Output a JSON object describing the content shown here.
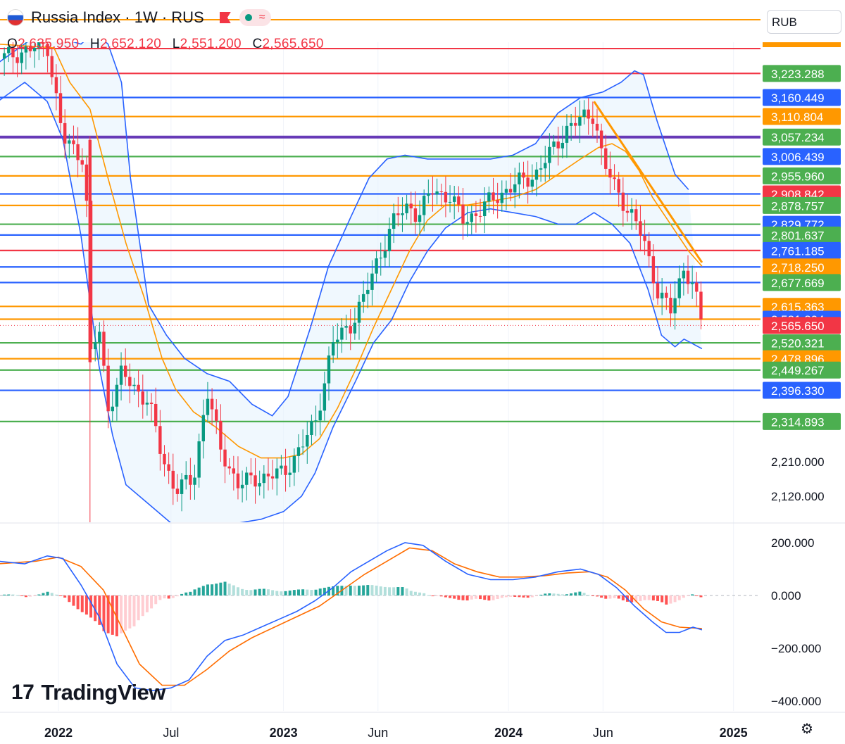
{
  "header": {
    "title": "Russia Index · 1W · RUS",
    "pill_symbol": "≈",
    "ohlc": [
      {
        "key": "O",
        "value": "2,635.950"
      },
      {
        "key": "H",
        "value": "2,652.120"
      },
      {
        "key": "L",
        "value": "2,551.200"
      },
      {
        "key": "C",
        "value": "2,565.650"
      }
    ]
  },
  "currency": "RUB",
  "logo_text": "TradingView",
  "colors": {
    "up": "#089981",
    "down": "#f23645",
    "orange": "#ff9800",
    "blue": "#2962ff",
    "green": "#4caf50",
    "purple": "#673ab7",
    "red": "#f23645"
  },
  "chart_data": {
    "type": "candlestick",
    "main_ylim": [
      2070,
      3300
    ],
    "x_labels": [
      {
        "label": "2022",
        "x": 2022.0,
        "bold": true
      },
      {
        "label": "Jul",
        "x": 2022.5,
        "bold": false
      },
      {
        "label": "2023",
        "x": 2023.0,
        "bold": true
      },
      {
        "label": "Jun",
        "x": 2023.42,
        "bold": false
      },
      {
        "label": "2024",
        "x": 2024.0,
        "bold": true
      },
      {
        "label": "Jun",
        "x": 2024.42,
        "bold": false
      },
      {
        "label": "2025",
        "x": 2025.0,
        "bold": true
      }
    ],
    "price_axis_ticks": [
      "2,210.000",
      "2,120.000"
    ],
    "hidden_top_level": "3,288.604",
    "levels": [
      {
        "value": 3223.288,
        "label": "3,223.288",
        "color": "#4caf50",
        "line": "#f23645"
      },
      {
        "value": 3160.449,
        "label": "3,160.449",
        "color": "#2962ff",
        "line": "#2962ff"
      },
      {
        "value": 3110.804,
        "label": "3,110.804",
        "color": "#ff9800",
        "line": "#ff9800"
      },
      {
        "value": 3057.234,
        "label": "3,057.234",
        "color": "#4caf50",
        "line": "#673ab7"
      },
      {
        "value": 3006.439,
        "label": "3,006.439",
        "color": "#2962ff",
        "line": "#4caf50"
      },
      {
        "value": 2955.96,
        "label": "2,955.960",
        "color": "#4caf50",
        "line": "#ff9800"
      },
      {
        "value": 2908.842,
        "label": "2,908.842",
        "color": "#f23645",
        "line": "#2962ff"
      },
      {
        "value": 2878.757,
        "label": "2,878.757",
        "color": "#4caf50",
        "line": "#ff9800"
      },
      {
        "value": 2829.772,
        "label": "2,829.772",
        "color": "#2962ff",
        "line": "#4caf50"
      },
      {
        "value": 2801.637,
        "label": "2,801.637",
        "color": "#4caf50",
        "line": "#2962ff"
      },
      {
        "value": 2761.185,
        "label": "2,761.185",
        "color": "#2962ff",
        "line": "#f23645"
      },
      {
        "value": 2718.25,
        "label": "2,718.250",
        "color": "#ff9800",
        "line": "#2962ff"
      },
      {
        "value": 2677.669,
        "label": "2,677.669",
        "color": "#4caf50",
        "line": "#2962ff"
      },
      {
        "value": 2615.363,
        "label": "2,615.363",
        "color": "#ff9800",
        "line": "#ff9800"
      },
      {
        "value": 2581.894,
        "label": "2,581.894",
        "color": "#2962ff",
        "line": "#ff9800"
      },
      {
        "value": 2565.65,
        "label": "2,565.650",
        "color": "#f23645",
        "line": "dotted"
      },
      {
        "value": 2520.321,
        "label": "2,520.321",
        "color": "#4caf50",
        "line": "#4caf50"
      },
      {
        "value": 2478.896,
        "label": "2,478.896",
        "color": "#ff9800",
        "line": "#ff9800"
      },
      {
        "value": 2449.267,
        "label": "2,449.267",
        "color": "#4caf50",
        "line": "#4caf50"
      },
      {
        "value": 2396.33,
        "label": "2,396.330",
        "color": "#2962ff",
        "line": "#2962ff"
      },
      {
        "value": 2314.893,
        "label": "2,314.893",
        "color": "#4caf50",
        "line": "#4caf50"
      }
    ],
    "price_path": [
      [
        2021.73,
        3260
      ],
      [
        2021.95,
        3300
      ],
      [
        2022.02,
        3050
      ],
      [
        2022.12,
        3000
      ],
      [
        2022.14,
        2480
      ],
      [
        2022.18,
        2560
      ],
      [
        2022.22,
        2350
      ],
      [
        2022.28,
        2440
      ],
      [
        2022.34,
        2400
      ],
      [
        2022.4,
        2370
      ],
      [
        2022.46,
        2220
      ],
      [
        2022.52,
        2140
      ],
      [
        2022.6,
        2160
      ],
      [
        2022.66,
        2400
      ],
      [
        2022.72,
        2240
      ],
      [
        2022.8,
        2150
      ],
      [
        2022.9,
        2170
      ],
      [
        2023.0,
        2180
      ],
      [
        2023.08,
        2250
      ],
      [
        2023.14,
        2310
      ],
      [
        2023.22,
        2520
      ],
      [
        2023.3,
        2570
      ],
      [
        2023.36,
        2640
      ],
      [
        2023.42,
        2740
      ],
      [
        2023.5,
        2850
      ],
      [
        2023.56,
        2880
      ],
      [
        2023.6,
        2850
      ],
      [
        2023.66,
        2920
      ],
      [
        2023.74,
        2900
      ],
      [
        2023.8,
        2840
      ],
      [
        2023.86,
        2860
      ],
      [
        2023.94,
        2900
      ],
      [
        2024.02,
        2930
      ],
      [
        2024.12,
        2960
      ],
      [
        2024.18,
        3010
      ],
      [
        2024.26,
        3080
      ],
      [
        2024.34,
        3110
      ],
      [
        2024.38,
        3120
      ],
      [
        2024.42,
        2990
      ],
      [
        2024.48,
        2920
      ],
      [
        2024.54,
        2860
      ],
      [
        2024.6,
        2790
      ],
      [
        2024.66,
        2660
      ],
      [
        2024.72,
        2600
      ],
      [
        2024.78,
        2720
      ],
      [
        2024.82,
        2670
      ],
      [
        2024.86,
        2566
      ]
    ],
    "bb_upper": [
      [
        2021.73,
        3250
      ],
      [
        2021.92,
        3330
      ],
      [
        2022.1,
        3300
      ],
      [
        2022.16,
        3330
      ],
      [
        2022.22,
        3300
      ],
      [
        2022.28,
        3200
      ],
      [
        2022.32,
        2950
      ],
      [
        2022.4,
        2620
      ],
      [
        2022.48,
        2540
      ],
      [
        2022.56,
        2480
      ],
      [
        2022.66,
        2440
      ],
      [
        2022.76,
        2420
      ],
      [
        2022.86,
        2360
      ],
      [
        2022.95,
        2330
      ],
      [
        2023.02,
        2380
      ],
      [
        2023.12,
        2560
      ],
      [
        2023.2,
        2720
      ],
      [
        2023.3,
        2850
      ],
      [
        2023.38,
        2950
      ],
      [
        2023.46,
        3000
      ],
      [
        2023.54,
        3010
      ],
      [
        2023.64,
        3000
      ],
      [
        2023.72,
        3000
      ],
      [
        2023.82,
        3000
      ],
      [
        2023.92,
        3000
      ],
      [
        2024.02,
        3010
      ],
      [
        2024.12,
        3040
      ],
      [
        2024.22,
        3120
      ],
      [
        2024.32,
        3160
      ],
      [
        2024.42,
        3175
      ],
      [
        2024.5,
        3200
      ],
      [
        2024.56,
        3230
      ],
      [
        2024.6,
        3220
      ],
      [
        2024.66,
        3100
      ],
      [
        2024.74,
        2960
      ],
      [
        2024.8,
        2920
      ]
    ],
    "bb_lower": [
      [
        2021.73,
        3150
      ],
      [
        2021.85,
        3200
      ],
      [
        2021.95,
        3150
      ],
      [
        2022.02,
        3050
      ],
      [
        2022.1,
        2800
      ],
      [
        2022.18,
        2460
      ],
      [
        2022.24,
        2280
      ],
      [
        2022.3,
        2150
      ],
      [
        2022.4,
        2100
      ],
      [
        2022.5,
        2050
      ],
      [
        2022.6,
        2050
      ],
      [
        2022.7,
        2050
      ],
      [
        2022.8,
        2050
      ],
      [
        2022.9,
        2060
      ],
      [
        2023.0,
        2080
      ],
      [
        2023.08,
        2120
      ],
      [
        2023.14,
        2180
      ],
      [
        2023.22,
        2300
      ],
      [
        2023.32,
        2420
      ],
      [
        2023.4,
        2520
      ],
      [
        2023.48,
        2580
      ],
      [
        2023.56,
        2680
      ],
      [
        2023.64,
        2760
      ],
      [
        2023.72,
        2820
      ],
      [
        2023.82,
        2860
      ],
      [
        2023.92,
        2870
      ],
      [
        2024.02,
        2860
      ],
      [
        2024.12,
        2850
      ],
      [
        2024.22,
        2830
      ],
      [
        2024.3,
        2830
      ],
      [
        2024.38,
        2860
      ],
      [
        2024.46,
        2830
      ],
      [
        2024.54,
        2780
      ],
      [
        2024.62,
        2660
      ],
      [
        2024.68,
        2540
      ],
      [
        2024.74,
        2510
      ],
      [
        2024.78,
        2530
      ],
      [
        2024.86,
        2505
      ]
    ],
    "ma": [
      [
        2021.73,
        3300
      ],
      [
        2021.98,
        3290
      ],
      [
        2022.05,
        3200
      ],
      [
        2022.14,
        3130
      ],
      [
        2022.22,
        2950
      ],
      [
        2022.3,
        2780
      ],
      [
        2022.38,
        2640
      ],
      [
        2022.46,
        2480
      ],
      [
        2022.52,
        2400
      ],
      [
        2022.6,
        2340
      ],
      [
        2022.7,
        2300
      ],
      [
        2022.8,
        2250
      ],
      [
        2022.9,
        2220
      ],
      [
        2023.0,
        2220
      ],
      [
        2023.08,
        2230
      ],
      [
        2023.16,
        2270
      ],
      [
        2023.24,
        2350
      ],
      [
        2023.32,
        2450
      ],
      [
        2023.4,
        2560
      ],
      [
        2023.48,
        2660
      ],
      [
        2023.56,
        2760
      ],
      [
        2023.64,
        2840
      ],
      [
        2023.72,
        2880
      ],
      [
        2023.82,
        2880
      ],
      [
        2023.92,
        2890
      ],
      [
        2024.02,
        2900
      ],
      [
        2024.12,
        2920
      ],
      [
        2024.22,
        2960
      ],
      [
        2024.32,
        3000
      ],
      [
        2024.4,
        3030
      ],
      [
        2024.46,
        3040
      ],
      [
        2024.52,
        3020
      ],
      [
        2024.58,
        2970
      ],
      [
        2024.64,
        2900
      ],
      [
        2024.72,
        2830
      ],
      [
        2024.8,
        2760
      ],
      [
        2024.86,
        2720
      ]
    ],
    "trendline": [
      [
        2024.38,
        3150
      ],
      [
        2024.86,
        2730
      ]
    ],
    "indicator": {
      "ylim": [
        -420,
        240
      ],
      "ticks": [
        {
          "value": 200,
          "label": "200.000"
        },
        {
          "value": 0,
          "label": "0.000"
        },
        {
          "value": -200,
          "label": "−200.000"
        },
        {
          "value": -400,
          "label": "−400.000"
        }
      ],
      "macd": [
        [
          2021.73,
          130
        ],
        [
          2021.85,
          120
        ],
        [
          2021.95,
          150
        ],
        [
          2022.02,
          140
        ],
        [
          2022.1,
          40
        ],
        [
          2022.18,
          -80
        ],
        [
          2022.26,
          -260
        ],
        [
          2022.34,
          -350
        ],
        [
          2022.42,
          -360
        ],
        [
          2022.5,
          -350
        ],
        [
          2022.58,
          -320
        ],
        [
          2022.66,
          -230
        ],
        [
          2022.74,
          -170
        ],
        [
          2022.82,
          -150
        ],
        [
          2022.9,
          -120
        ],
        [
          2022.98,
          -90
        ],
        [
          2023.06,
          -60
        ],
        [
          2023.14,
          -20
        ],
        [
          2023.22,
          30
        ],
        [
          2023.3,
          90
        ],
        [
          2023.38,
          130
        ],
        [
          2023.46,
          170
        ],
        [
          2023.54,
          200
        ],
        [
          2023.62,
          190
        ],
        [
          2023.72,
          130
        ],
        [
          2023.82,
          80
        ],
        [
          2023.92,
          60
        ],
        [
          2024.02,
          60
        ],
        [
          2024.12,
          70
        ],
        [
          2024.22,
          90
        ],
        [
          2024.32,
          100
        ],
        [
          2024.4,
          80
        ],
        [
          2024.48,
          30
        ],
        [
          2024.56,
          -40
        ],
        [
          2024.64,
          -100
        ],
        [
          2024.7,
          -140
        ],
        [
          2024.76,
          -140
        ],
        [
          2024.82,
          -120
        ],
        [
          2024.86,
          -130
        ]
      ],
      "signal": [
        [
          2021.73,
          120
        ],
        [
          2021.9,
          130
        ],
        [
          2022.0,
          145
        ],
        [
          2022.1,
          110
        ],
        [
          2022.2,
          20
        ],
        [
          2022.28,
          -120
        ],
        [
          2022.36,
          -260
        ],
        [
          2022.46,
          -340
        ],
        [
          2022.56,
          -340
        ],
        [
          2022.66,
          -280
        ],
        [
          2022.76,
          -210
        ],
        [
          2022.86,
          -160
        ],
        [
          2022.96,
          -120
        ],
        [
          2023.06,
          -80
        ],
        [
          2023.16,
          -40
        ],
        [
          2023.26,
          20
        ],
        [
          2023.36,
          80
        ],
        [
          2023.46,
          130
        ],
        [
          2023.56,
          180
        ],
        [
          2023.66,
          170
        ],
        [
          2023.76,
          120
        ],
        [
          2023.86,
          90
        ],
        [
          2023.96,
          70
        ],
        [
          2024.06,
          70
        ],
        [
          2024.16,
          75
        ],
        [
          2024.26,
          85
        ],
        [
          2024.36,
          90
        ],
        [
          2024.44,
          70
        ],
        [
          2024.52,
          20
        ],
        [
          2024.6,
          -50
        ],
        [
          2024.68,
          -100
        ],
        [
          2024.76,
          -120
        ],
        [
          2024.86,
          -125
        ]
      ]
    }
  }
}
